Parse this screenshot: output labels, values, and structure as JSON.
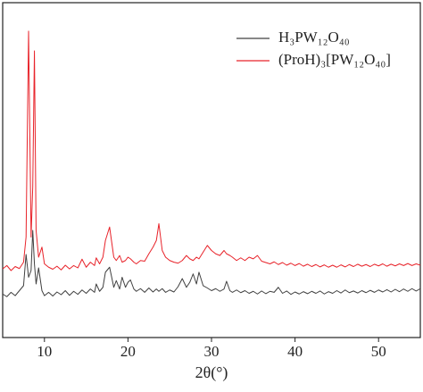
{
  "chart_data": {
    "type": "line",
    "xlabel": "2θ(°)",
    "legend": "upper right",
    "xlim": [
      5,
      55
    ],
    "xticks": [
      10,
      20,
      30,
      40,
      50
    ],
    "ylim": [
      0,
      100
    ],
    "x": [
      5,
      5.5,
      6,
      6.5,
      7,
      7.5,
      7.8,
      8.1,
      8.4,
      8.6,
      8.8,
      9,
      9.3,
      9.7,
      10,
      10.5,
      11,
      11.5,
      12,
      12.5,
      13,
      13.5,
      14,
      14.5,
      15,
      15.5,
      16,
      16.2,
      16.6,
      17,
      17.3,
      17.8,
      18.3,
      18.6,
      19,
      19.3,
      19.7,
      20,
      20.3,
      20.7,
      21,
      21.5,
      22,
      22.5,
      23,
      23.4,
      23.7,
      24.1,
      24.5,
      25,
      25.5,
      26,
      26.5,
      27,
      27.4,
      27.8,
      28.2,
      28.5,
      29,
      29.5,
      30,
      30.5,
      31,
      31.5,
      31.8,
      32.2,
      32.5,
      33,
      33.5,
      34,
      34.5,
      35,
      35.5,
      36,
      36.5,
      37,
      37.5,
      38,
      38.5,
      39,
      39.5,
      40,
      40.5,
      41,
      41.5,
      42,
      42.5,
      43,
      43.5,
      44,
      44.5,
      45,
      45.5,
      46,
      46.5,
      47,
      47.5,
      48,
      48.5,
      49,
      49.5,
      50,
      50.5,
      51,
      51.5,
      52,
      52.5,
      53,
      53.5,
      54,
      54.5,
      55
    ],
    "series": [
      {
        "name": "H₃PW₁₂O₄₀",
        "color": "#404040",
        "values": [
          13,
          12.2,
          13.5,
          12.5,
          14,
          15.5,
          24.8,
          18,
          20,
          32,
          22,
          16,
          20.8,
          14,
          12.5,
          13.5,
          12.4,
          13.6,
          12.8,
          14,
          12.6,
          13.8,
          12.9,
          14.2,
          13.2,
          14.5,
          13.5,
          16,
          13.8,
          15,
          19.5,
          21,
          15,
          17,
          14.5,
          18,
          15,
          16.5,
          17.2,
          14.5,
          13.8,
          14.6,
          13.5,
          14.8,
          13.6,
          14.5,
          13.8,
          14.6,
          13.5,
          14.2,
          13.6,
          15.2,
          17.6,
          15,
          16.5,
          19,
          16,
          19.5,
          15.5,
          14.8,
          14,
          14.6,
          13.8,
          14.5,
          16.8,
          14,
          13.5,
          14.2,
          13.4,
          14,
          13.2,
          13.8,
          13,
          13.9,
          13.1,
          13.8,
          13.5,
          15,
          13.2,
          13.9,
          12.9,
          13.6,
          13.0,
          13.7,
          13.1,
          13.8,
          13.2,
          13.9,
          13.0,
          13.7,
          13.2,
          14.0,
          13.3,
          14.2,
          13.4,
          13.9,
          13.3,
          14.0,
          13.4,
          14.1,
          13.5,
          14.2,
          13.6,
          14.3,
          13.6,
          14.4,
          13.7,
          14.5,
          13.8,
          14.6,
          13.9,
          14.6
        ]
      },
      {
        "name": "(ProH)₃[PW₁₂O₄₀]",
        "color": "#e8232a",
        "values": [
          20.5,
          21.5,
          20,
          21.2,
          20.6,
          22.5,
          30,
          91.5,
          30,
          45,
          85.6,
          32,
          24,
          27,
          22,
          21,
          20.4,
          21.3,
          20.2,
          21.6,
          20.5,
          21.5,
          20.8,
          23.4,
          21,
          22.5,
          21.5,
          23.8,
          22,
          24,
          29,
          33,
          24,
          23,
          24.5,
          22.5,
          23,
          24,
          23.5,
          22.5,
          22,
          23,
          22.8,
          25,
          27,
          29,
          34,
          26,
          24,
          23,
          22.5,
          22.2,
          23,
          24.5,
          23.5,
          23,
          24,
          23.5,
          25.5,
          27.5,
          26,
          25,
          24.5,
          26,
          25,
          24.5,
          24,
          23,
          23.8,
          23,
          24,
          23.5,
          24.5,
          22.8,
          22.4,
          22,
          22.6,
          21.8,
          22.4,
          21.6,
          22.2,
          21.5,
          22.1,
          21.3,
          21.9,
          21.2,
          21.8,
          21.1,
          21.7,
          21.0,
          21.6,
          21.0,
          21.7,
          21.1,
          21.8,
          21.2,
          21.9,
          21.3,
          21.8,
          21.2,
          21.9,
          21.4,
          22.0,
          21.3,
          21.9,
          21.4,
          22.0,
          21.5,
          22.1,
          21.5,
          22.0,
          21.6
        ]
      }
    ]
  }
}
